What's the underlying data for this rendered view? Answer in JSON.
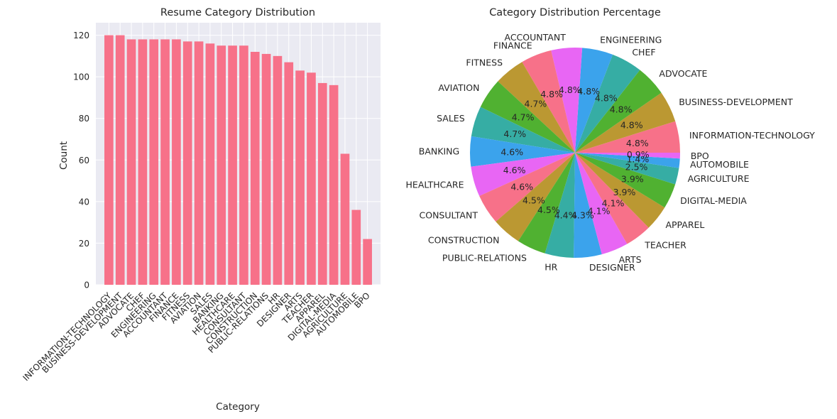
{
  "chart_data": [
    {
      "type": "bar",
      "title": "Resume Category Distribution",
      "xlabel": "Category",
      "ylabel": "Count",
      "ylim": [
        0,
        126
      ],
      "yticks": [
        0,
        20,
        40,
        60,
        80,
        100,
        120
      ],
      "grid": true,
      "color": "#f77189",
      "categories": [
        "INFORMATION-TECHNOLOGY",
        "BUSINESS-DEVELOPMENT",
        "ADVOCATE",
        "CHEF",
        "ENGINEERING",
        "ACCOUNTANT",
        "FINANCE",
        "FITNESS",
        "AVIATION",
        "SALES",
        "BANKING",
        "HEALTHCARE",
        "CONSULTANT",
        "CONSTRUCTION",
        "PUBLIC-RELATIONS",
        "HR",
        "DESIGNER",
        "ARTS",
        "TEACHER",
        "APPAREL",
        "DIGITAL-MEDIA",
        "AGRICULTURE",
        "AUTOMOBILE",
        "BPO"
      ],
      "values": [
        120,
        120,
        118,
        118,
        118,
        118,
        118,
        117,
        117,
        116,
        115,
        115,
        115,
        112,
        111,
        110,
        107,
        103,
        102,
        97,
        96,
        63,
        36,
        22
      ]
    },
    {
      "type": "pie",
      "title": "Category Distribution Percentage",
      "start_angle": 0,
      "direction": "counterclockwise",
      "labels": [
        "INFORMATION-TECHNOLOGY",
        "BUSINESS-DEVELOPMENT",
        "ADVOCATE",
        "CHEF",
        "ENGINEERING",
        "ACCOUNTANT",
        "FINANCE",
        "FITNESS",
        "AVIATION",
        "SALES",
        "BANKING",
        "HEALTHCARE",
        "CONSULTANT",
        "CONSTRUCTION",
        "PUBLIC-RELATIONS",
        "HR",
        "DESIGNER",
        "ARTS",
        "TEACHER",
        "APPAREL",
        "DIGITAL-MEDIA",
        "AGRICULTURE",
        "AUTOMOBILE",
        "BPO"
      ],
      "values": [
        120,
        120,
        118,
        118,
        118,
        118,
        118,
        117,
        117,
        116,
        115,
        115,
        115,
        112,
        111,
        110,
        107,
        103,
        102,
        97,
        96,
        63,
        36,
        22
      ],
      "percent_labels": [
        "4.8%",
        "4.8%",
        "4.8%",
        "4.8%",
        "4.8%",
        "4.8%",
        "4.8%",
        "4.7%",
        "4.7%",
        "4.7%",
        "4.6%",
        "4.6%",
        "4.6%",
        "4.5%",
        "4.5%",
        "4.4%",
        "4.3%",
        "4.1%",
        "4.1%",
        "3.9%",
        "3.9%",
        "2.5%",
        "1.4%",
        "0.9%"
      ],
      "colors": [
        "#f77189",
        "#bb9832",
        "#50b131",
        "#36ada4",
        "#3ba3ec",
        "#e866f4",
        "#f77189",
        "#bb9832",
        "#50b131",
        "#36ada4",
        "#3ba3ec",
        "#e866f4",
        "#f77189",
        "#bb9832",
        "#50b131",
        "#36ada4",
        "#3ba3ec",
        "#e866f4",
        "#f77189",
        "#bb9832",
        "#50b131",
        "#36ada4",
        "#3ba3ec",
        "#e866f4"
      ]
    }
  ]
}
